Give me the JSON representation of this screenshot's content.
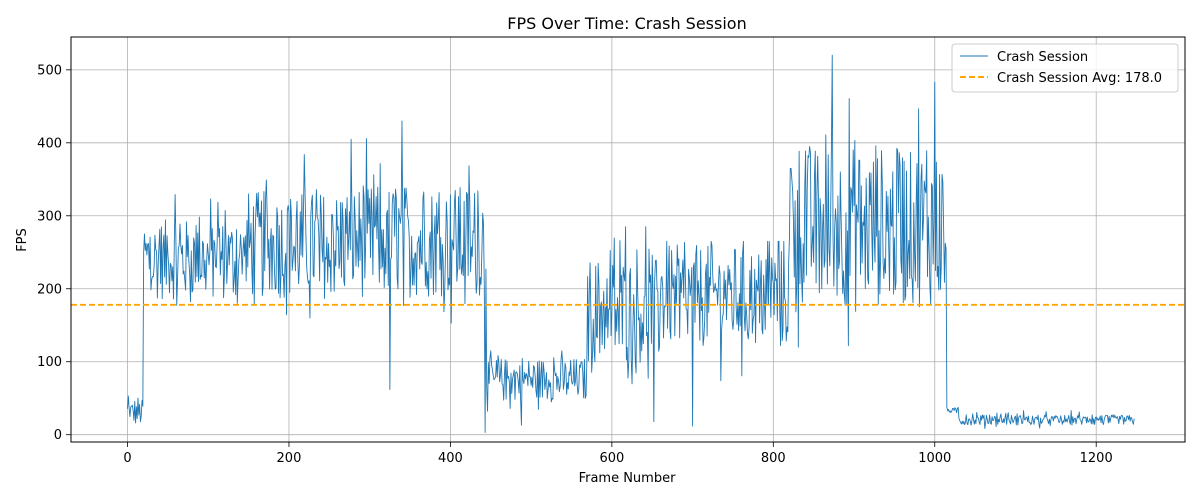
{
  "chart_data": {
    "type": "line",
    "title": "FPS Over Time: Crash Session",
    "xlabel": "Frame Number",
    "ylabel": "FPS",
    "xlim": [
      -70,
      1310
    ],
    "ylim": [
      -10,
      545
    ],
    "x_ticks": [
      0,
      200,
      400,
      600,
      800,
      1000,
      1200
    ],
    "y_ticks": [
      0,
      100,
      200,
      300,
      400,
      500
    ],
    "grid": true,
    "legend_position": "top-right",
    "series": [
      {
        "name": "Crash Session",
        "kind": "line",
        "color": "#1f77b4",
        "segments": [
          {
            "x_start": 0,
            "x_end": 20,
            "low": 5,
            "high": 70,
            "base": 30
          },
          {
            "x_start": 20,
            "x_end": 150,
            "low": 150,
            "high": 350,
            "base": 240
          },
          {
            "x_start": 150,
            "x_end": 260,
            "low": 160,
            "high": 430,
            "base": 260
          },
          {
            "x_start": 260,
            "x_end": 445,
            "low": 150,
            "high": 430,
            "base": 265
          },
          {
            "x_start": 445,
            "x_end": 570,
            "low": 5,
            "high": 115,
            "base": 75
          },
          {
            "x_start": 570,
            "x_end": 660,
            "low": 20,
            "high": 285,
            "base": 170
          },
          {
            "x_start": 660,
            "x_end": 820,
            "low": 10,
            "high": 265,
            "base": 190
          },
          {
            "x_start": 820,
            "x_end": 1015,
            "low": 120,
            "high": 520,
            "base": 285
          },
          {
            "x_start": 1015,
            "x_end": 1030,
            "low": 25,
            "high": 40,
            "base": 33
          },
          {
            "x_start": 1030,
            "x_end": 1248,
            "low": 8,
            "high": 33,
            "base": 20
          }
        ],
        "spikes": [
          {
            "x": 325,
            "y": 62
          },
          {
            "x": 340,
            "y": 430
          },
          {
            "x": 443,
            "y": 3
          },
          {
            "x": 488,
            "y": 13
          },
          {
            "x": 617,
            "y": 285
          },
          {
            "x": 652,
            "y": 18
          },
          {
            "x": 700,
            "y": 12
          },
          {
            "x": 873,
            "y": 520
          },
          {
            "x": 893,
            "y": 122
          },
          {
            "x": 1000,
            "y": 483
          },
          {
            "x": 1110,
            "y": 33
          }
        ]
      },
      {
        "name": "Crash Session Avg: 178.0",
        "kind": "hline",
        "y": 178.0,
        "color": "#ffa500"
      }
    ]
  }
}
